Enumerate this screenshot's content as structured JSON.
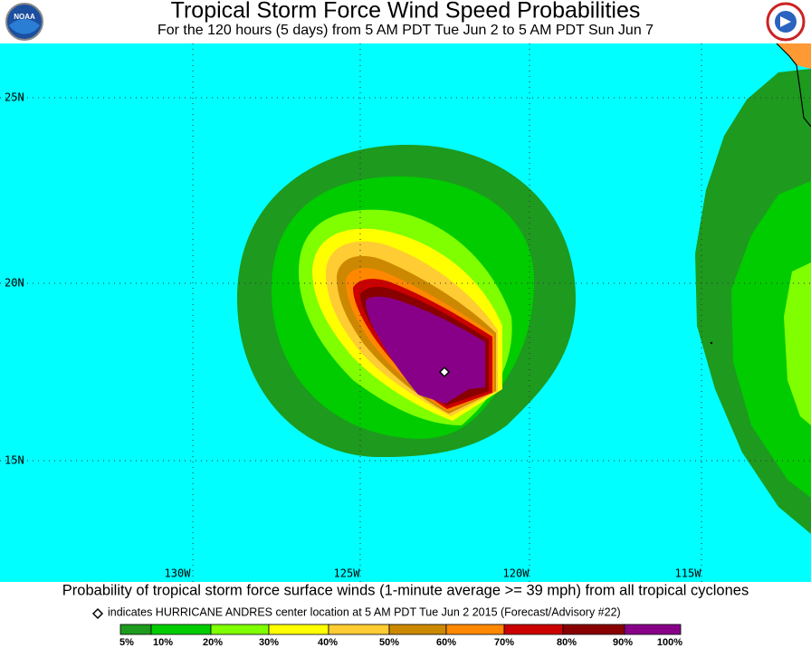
{
  "header": {
    "title": "Tropical Storm Force Wind Speed Probabilities",
    "subtitle": "For the 120 hours (5 days) from 5 AM PDT Tue Jun 2 to 5 AM PDT Sun Jun 7"
  },
  "map": {
    "lat_labels": [
      "25N",
      "20N",
      "15N"
    ],
    "lon_labels": [
      "130W",
      "125W",
      "120W",
      "115W"
    ]
  },
  "footer": {
    "caption": "Probability of tropical storm force surface winds (1-minute average >= 39 mph) from all tropical cyclones",
    "marker_note": "indicates HURRICANE ANDRES center location at 5 AM PDT Tue Jun 2 2015 (Forecast/Advisory #22)"
  },
  "legend": {
    "labels": [
      "5%",
      "10%",
      "20%",
      "30%",
      "40%",
      "50%",
      "60%",
      "70%",
      "80%",
      "90%",
      "100%"
    ]
  }
}
